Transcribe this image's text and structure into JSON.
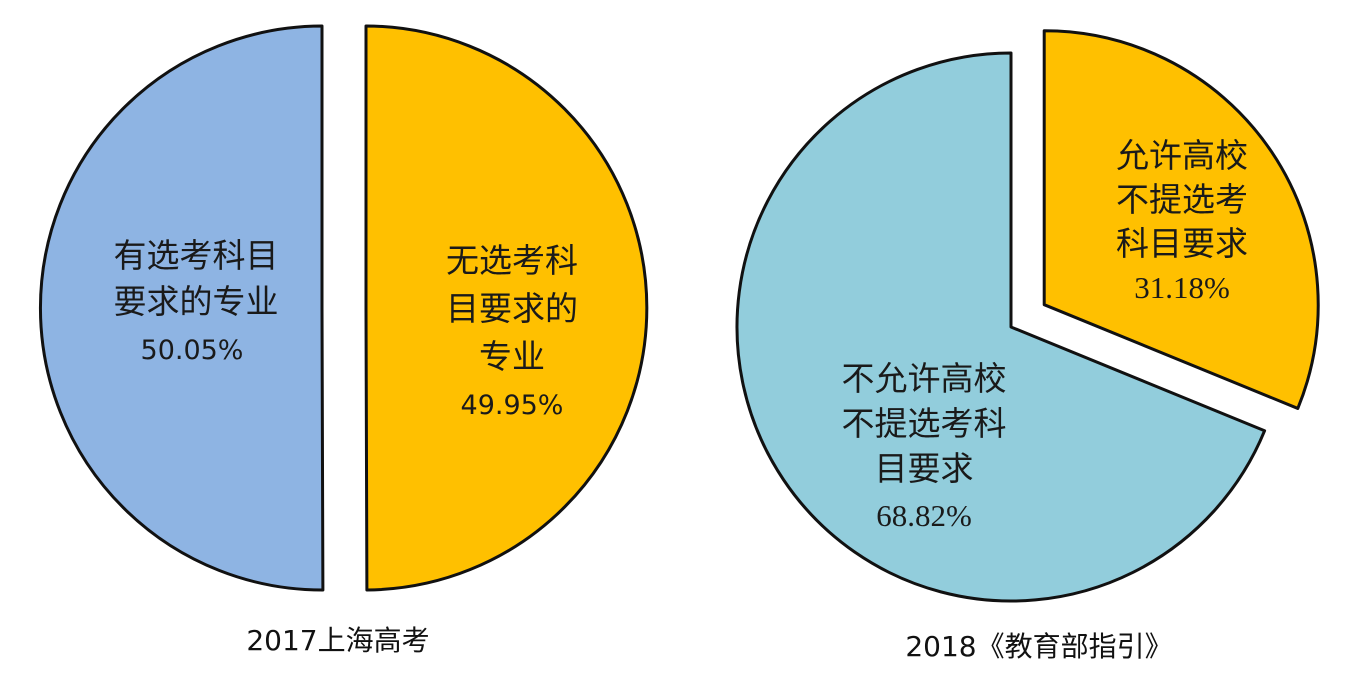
{
  "chart_data": [
    {
      "type": "pie",
      "caption": "2017上海高考",
      "slices": [
        {
          "label_lines": [
            "有选考科目",
            "要求的专业"
          ],
          "value": 50.05,
          "value_label": "50.05%",
          "color": "#8EB4E3"
        },
        {
          "label_lines": [
            "无选考科",
            "目要求的",
            "专业"
          ],
          "value": 49.95,
          "value_label": "49.95%",
          "color": "#FFC000"
        }
      ]
    },
    {
      "type": "pie",
      "caption": "2018《教育部指引》",
      "slices": [
        {
          "label_lines": [
            "允许高校",
            "不提选考",
            "科目要求"
          ],
          "value": 31.18,
          "value_label": "31.18%",
          "color": "#FFC000"
        },
        {
          "label_lines": [
            "不允许高校",
            "不提选考科",
            "目要求"
          ],
          "value": 68.82,
          "value_label": "68.82%",
          "color": "#92CDDC"
        }
      ]
    }
  ]
}
